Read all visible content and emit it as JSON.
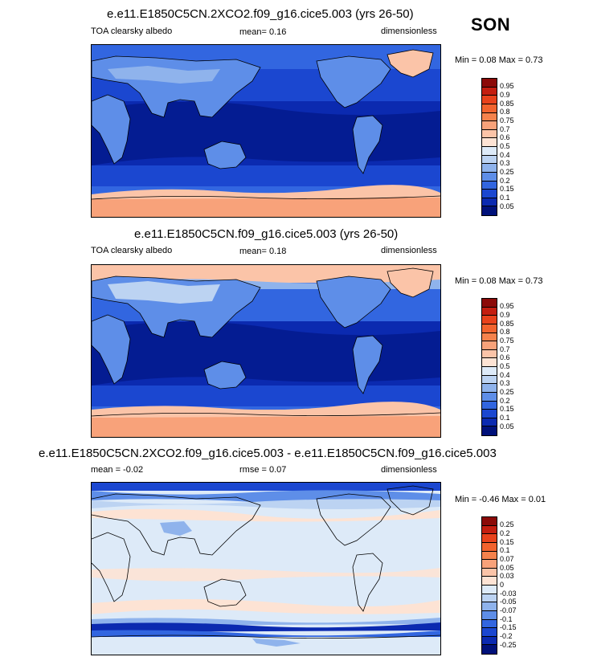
{
  "season": "SON",
  "panels": [
    {
      "title": "e.e11.E1850C5CN.2XCO2.f09_g16.cice5.003 (yrs 26-50)",
      "left_label": "TOA clearsky albedo",
      "center_label": "mean=  0.16",
      "right_label": "dimensionless",
      "minmax": "Min =  0.08 Max =  0.73",
      "colorbar": {
        "labels": [
          "0.95",
          "0.9",
          "0.85",
          "0.8",
          "0.75",
          "0.7",
          "0.6",
          "0.5",
          "0.4",
          "0.3",
          "0.25",
          "0.2",
          "0.15",
          "0.1",
          "0.05"
        ],
        "colors": [
          "#8b0a08",
          "#c41e10",
          "#e8421c",
          "#f2632e",
          "#f5824c",
          "#f8a27a",
          "#fbc4a8",
          "#fde3d4",
          "#ddeaf8",
          "#bcd3f2",
          "#8fb3ec",
          "#5e8ee8",
          "#3266e0",
          "#1b47d0",
          "#0b2ab0",
          "#00117a"
        ]
      }
    },
    {
      "title": "e.e11.E1850C5CN.f09_g16.cice5.003 (yrs 26-50)",
      "left_label": "TOA clearsky albedo",
      "center_label": "mean=  0.18",
      "right_label": "dimensionless",
      "minmax": "Min =  0.08 Max =  0.73",
      "colorbar": {
        "labels": [
          "0.95",
          "0.9",
          "0.85",
          "0.8",
          "0.75",
          "0.7",
          "0.6",
          "0.5",
          "0.4",
          "0.3",
          "0.25",
          "0.2",
          "0.15",
          "0.1",
          "0.05"
        ],
        "colors": [
          "#8b0a08",
          "#c41e10",
          "#e8421c",
          "#f2632e",
          "#f5824c",
          "#f8a27a",
          "#fbc4a8",
          "#fde3d4",
          "#ddeaf8",
          "#bcd3f2",
          "#8fb3ec",
          "#5e8ee8",
          "#3266e0",
          "#1b47d0",
          "#0b2ab0",
          "#00117a"
        ]
      }
    },
    {
      "title": "e.e11.E1850C5CN.2XCO2.f09_g16.cice5.003 - e.e11.E1850C5CN.f09_g16.cice5.003",
      "left_label": "mean =  -0.02",
      "center_label": "rmse =  0.07",
      "right_label": "dimensionless",
      "minmax": "Min =  -0.46 Max =  0.01",
      "colorbar": {
        "labels": [
          "0.25",
          "0.2",
          "0.15",
          "0.1",
          "0.07",
          "0.05",
          "0.03",
          "0",
          "-0.03",
          "-0.05",
          "-0.07",
          "-0.1",
          "-0.15",
          "-0.2",
          "-0.25"
        ],
        "colors": [
          "#8b0a08",
          "#c41e10",
          "#e8421c",
          "#f2632e",
          "#f5824c",
          "#f8a27a",
          "#fbc4a8",
          "#fde3d4",
          "#ddeaf8",
          "#bcd3f2",
          "#8fb3ec",
          "#5e8ee8",
          "#3266e0",
          "#1b47d0",
          "#0b2ab0",
          "#00117a"
        ]
      }
    }
  ]
}
